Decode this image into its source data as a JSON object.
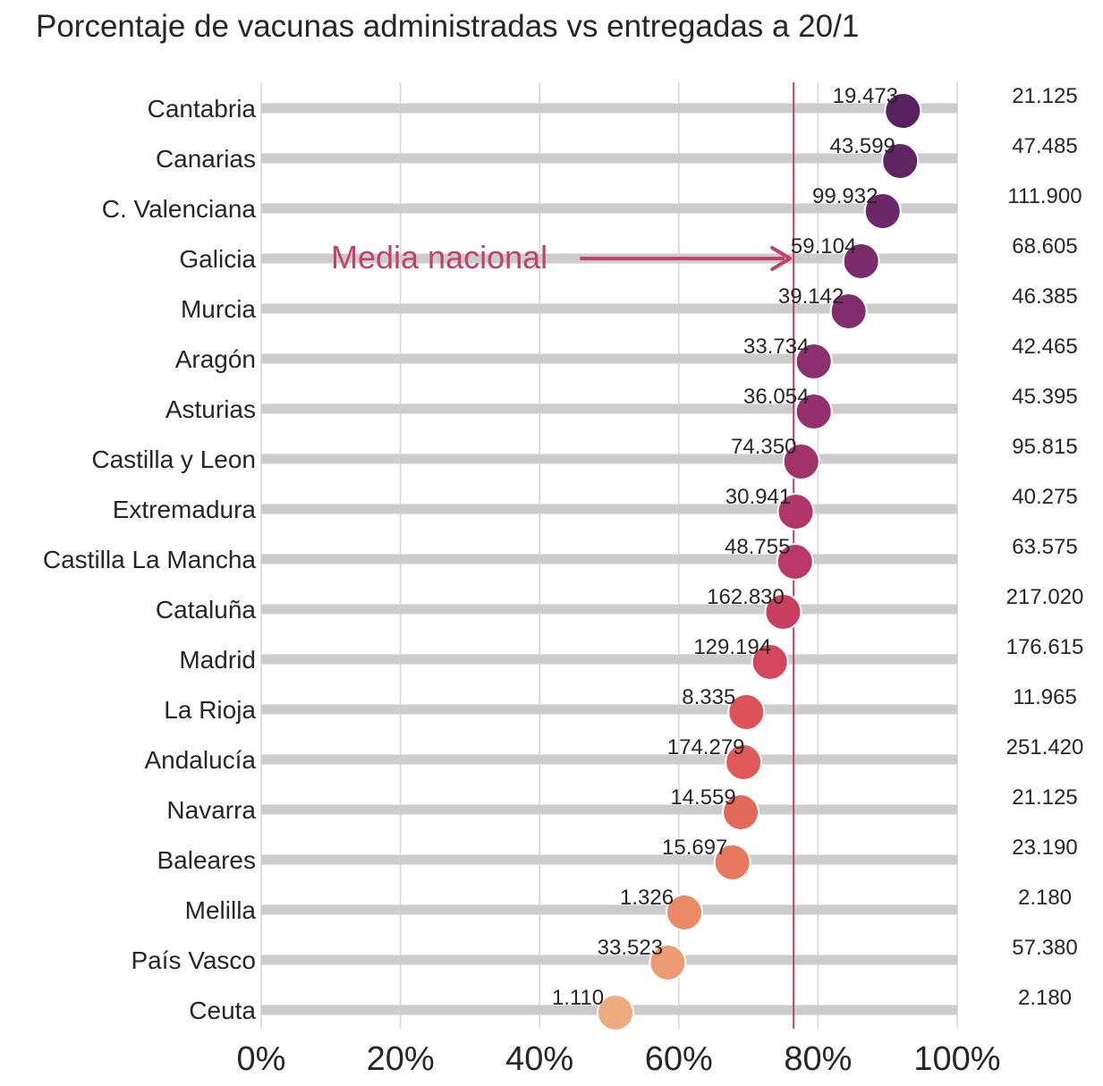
{
  "chart_data": {
    "type": "scatter",
    "title": "Porcentaje de vacunas administradas vs entregadas a 20/1",
    "xlim": [
      0,
      100
    ],
    "x_ticks": [
      "0%",
      "20%",
      "40%",
      "60%",
      "80%",
      "100%"
    ],
    "x_tick_values": [
      0,
      20,
      40,
      60,
      80,
      100
    ],
    "grid": true,
    "reference_line": {
      "value": 76.5,
      "label": "Media nacional"
    },
    "colors": {
      "line": "#b5436b",
      "annotation": "#c2416b",
      "track": "#cccccc"
    },
    "categories": [
      "Cantabria",
      "Canarias",
      "C. Valenciana",
      "Galicia",
      "Murcia",
      "Aragón",
      "Asturias",
      "Castilla y Leon",
      "Extremadura",
      "Castilla La Mancha",
      "Cataluña",
      "Madrid",
      "La Rioja",
      "Andalucía",
      "Navarra",
      "Baleares",
      "Melilla",
      "País Vasco",
      "Ceuta"
    ],
    "values": [
      92.2,
      91.8,
      89.3,
      86.2,
      84.4,
      79.4,
      79.4,
      77.6,
      76.8,
      76.7,
      75.0,
      73.1,
      69.7,
      69.3,
      68.9,
      67.7,
      60.8,
      58.4,
      50.9
    ],
    "administered_labels": [
      "19.473",
      "43.599",
      "99.932",
      "59.104",
      "39.142",
      "33.734",
      "36.054",
      "74.350",
      "30.941",
      "48.755",
      "162.830",
      "129.194",
      "8.335",
      "174.279",
      "14.559",
      "15.697",
      "1.326",
      "33.523",
      "1.110"
    ],
    "delivered_labels": [
      "21.125",
      "47.485",
      "111.900",
      "68.605",
      "46.385",
      "42.465",
      "45.395",
      "95.815",
      "40.275",
      "63.575",
      "217.020",
      "176.615",
      "11.965",
      "251.420",
      "21.125",
      "23.190",
      "2.180",
      "57.380",
      "2.180"
    ],
    "point_colors": [
      "#57225f",
      "#5f2462",
      "#6a2868",
      "#792b6b",
      "#822d6d",
      "#8d2e6f",
      "#962f6e",
      "#a3316c",
      "#b03569",
      "#bc3866",
      "#c93d60",
      "#d4465c",
      "#dd5159",
      "#e05a59",
      "#e3695a",
      "#e8785e",
      "#ea8a66",
      "#ec9b72",
      "#eeab7f"
    ]
  }
}
